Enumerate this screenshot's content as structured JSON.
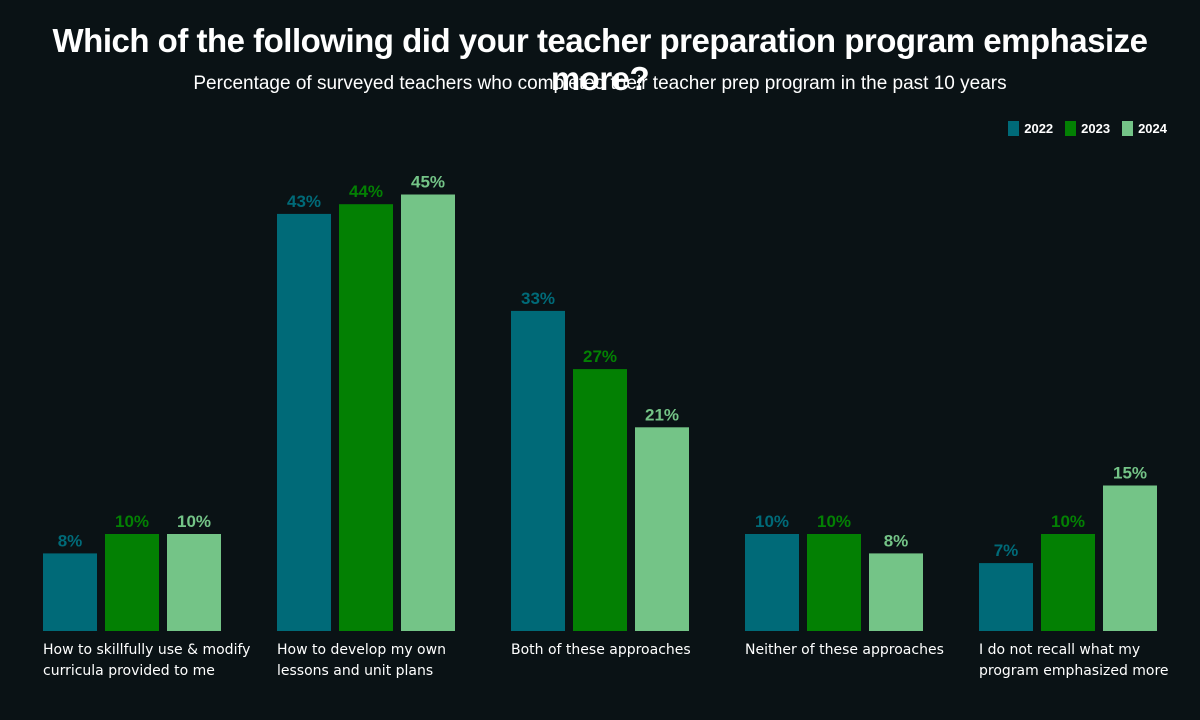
{
  "chart_data": {
    "type": "bar",
    "title": "Which of the following did your teacher preparation program emphasize more?",
    "subtitle": "Percentage of surveyed teachers who completed their teacher prep program in the past 10 years",
    "categories": [
      [
        "How to skillfully use & modify",
        "curricula provided to me"
      ],
      [
        "How to develop my own",
        "lessons and unit plans"
      ],
      [
        "Both of these approaches"
      ],
      [
        "Neither of these approaches"
      ],
      [
        "I do not recall what my",
        "program emphasized more"
      ]
    ],
    "series": [
      {
        "name": "2022",
        "color": "#006a78",
        "values": [
          8,
          43,
          33,
          10,
          7
        ]
      },
      {
        "name": "2023",
        "color": "#038003",
        "values": [
          10,
          44,
          27,
          10,
          10
        ]
      },
      {
        "name": "2024",
        "color": "#74c487",
        "values": [
          10,
          45,
          21,
          8,
          15
        ]
      }
    ],
    "value_suffix": "%",
    "ylim": [
      0,
      45
    ],
    "legend_position": "top-right",
    "grid": false
  }
}
